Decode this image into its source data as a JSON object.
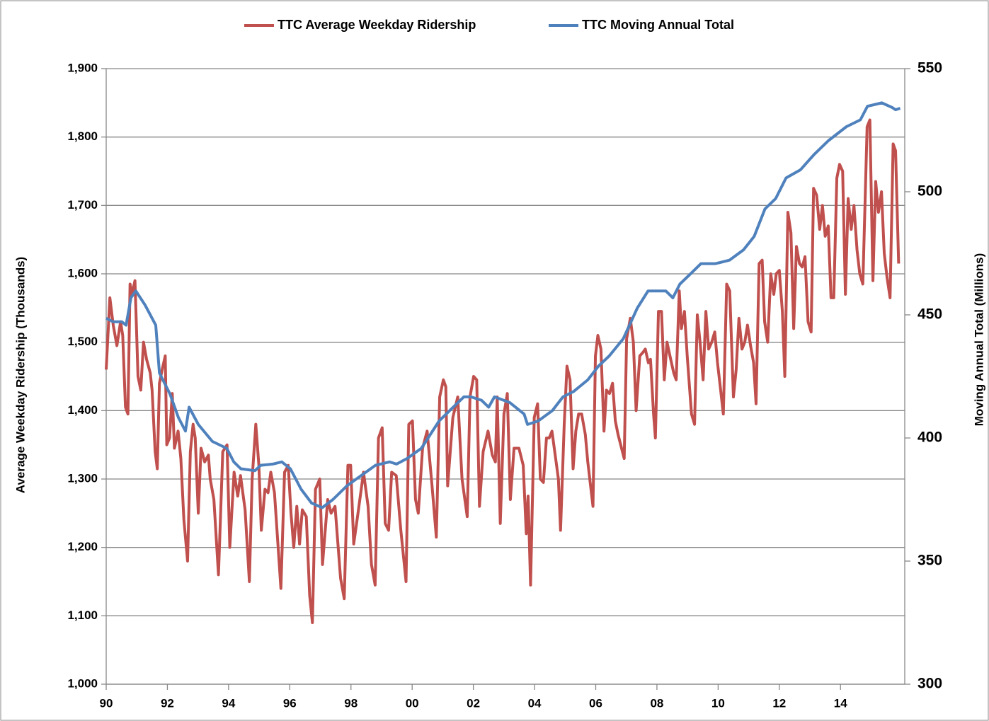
{
  "chart_data": {
    "type": "line",
    "y_label": "Average Weekday Ridership (Thousands)",
    "y2_label": "Moving Annual Total (Millions)",
    "xlim": [
      1990,
      2016.1
    ],
    "xticks": [
      {
        "value": 1990,
        "label": "90"
      },
      {
        "value": 1992,
        "label": "92"
      },
      {
        "value": 1994,
        "label": "94"
      },
      {
        "value": 1996,
        "label": "96"
      },
      {
        "value": 1998,
        "label": "98"
      },
      {
        "value": 2000,
        "label": "00"
      },
      {
        "value": 2002,
        "label": "02"
      },
      {
        "value": 2004,
        "label": "04"
      },
      {
        "value": 2006,
        "label": "06"
      },
      {
        "value": 2008,
        "label": "08"
      },
      {
        "value": 2010,
        "label": "10"
      },
      {
        "value": 2012,
        "label": "12"
      },
      {
        "value": 2014,
        "label": "14"
      }
    ],
    "ylim": [
      1000,
      1900
    ],
    "yticks": [
      {
        "value": 1000,
        "label": "1,000"
      },
      {
        "value": 1100,
        "label": "1,100"
      },
      {
        "value": 1200,
        "label": "1,200"
      },
      {
        "value": 1300,
        "label": "1,300"
      },
      {
        "value": 1400,
        "label": "1,400"
      },
      {
        "value": 1500,
        "label": "1,500"
      },
      {
        "value": 1600,
        "label": "1,600"
      },
      {
        "value": 1700,
        "label": "1,700"
      },
      {
        "value": 1800,
        "label": "1,800"
      },
      {
        "value": 1900,
        "label": "1,900"
      }
    ],
    "y2lim": [
      300,
      550
    ],
    "y2ticks": [
      300,
      350,
      400,
      450,
      500,
      550
    ],
    "grid": true,
    "legend": "top",
    "series": [
      {
        "name": "TTC Average Weekday Ridership",
        "color": "#c0504d",
        "axis": "y",
        "x": [
          1990,
          1990.12,
          1990.23,
          1990.35,
          1990.47,
          1990.54,
          1990.63,
          1990.71,
          1990.78,
          1990.84,
          1990.94,
          1991.04,
          1991.13,
          1991.22,
          1991.32,
          1991.44,
          1991.5,
          1991.6,
          1991.67,
          1991.74,
          1991.83,
          1991.93,
          1991.98,
          1992.07,
          1992.16,
          1992.23,
          1992.35,
          1992.44,
          1992.54,
          1992.66,
          1992.75,
          1992.84,
          1992.91,
          1993.01,
          1993.1,
          1993.22,
          1993.34,
          1993.4,
          1993.52,
          1993.67,
          1993.81,
          1993.95,
          1994.04,
          1994.18,
          1994.3,
          1994.39,
          1994.54,
          1994.68,
          1994.77,
          1994.89,
          1994.99,
          1995.07,
          1995.19,
          1995.29,
          1995.38,
          1995.5,
          1995.71,
          1995.83,
          1995.95,
          1996.04,
          1996.13,
          1996.23,
          1996.32,
          1996.41,
          1996.54,
          1996.65,
          1996.74,
          1996.84,
          1996.98,
          1997.07,
          1997.24,
          1997.35,
          1997.48,
          1997.66,
          1997.78,
          1997.9,
          1997.99,
          1998.09,
          1998.23,
          1998.41,
          1998.56,
          1998.67,
          1998.79,
          1998.9,
          1999.02,
          1999.12,
          1999.23,
          1999.33,
          1999.48,
          1999.63,
          1999.8,
          1999.89,
          2000.01,
          2000.11,
          2000.2,
          2000.34,
          2000.49,
          2000.65,
          2000.79,
          2000.9,
          2001.02,
          2001.1,
          2001.16,
          2001.33,
          2001.49,
          2001.63,
          2001.8,
          2001.89,
          2002.01,
          2002.11,
          2002.2,
          2002.32,
          2002.48,
          2002.62,
          2002.72,
          2002.78,
          2002.88,
          2003,
          2003.11,
          2003.21,
          2003.33,
          2003.49,
          2003.63,
          2003.73,
          2003.79,
          2003.87,
          2003.99,
          2004.1,
          2004.19,
          2004.29,
          2004.39,
          2004.48,
          2004.57,
          2004.69,
          2004.78,
          2004.85,
          2004.97,
          2005.06,
          2005.16,
          2005.26,
          2005.35,
          2005.44,
          2005.54,
          2005.66,
          2005.74,
          2005.91,
          2005.99,
          2006.07,
          2006.17,
          2006.27,
          2006.35,
          2006.45,
          2006.55,
          2006.64,
          2006.73,
          2006.93,
          2007.01,
          2007.13,
          2007.23,
          2007.32,
          2007.44,
          2007.54,
          2007.62,
          2007.72,
          2007.79,
          2007.89,
          2007.95,
          2008.05,
          2008.15,
          2008.24,
          2008.33,
          2008.45,
          2008.55,
          2008.63,
          2008.73,
          2008.8,
          2008.9,
          2008.99,
          2009.13,
          2009.23,
          2009.32,
          2009.41,
          2009.51,
          2009.6,
          2009.69,
          2009.79,
          2009.89,
          2009.98,
          2010.07,
          2010.17,
          2010.28,
          2010.38,
          2010.5,
          2010.59,
          2010.68,
          2010.78,
          2010.87,
          2010.96,
          2011.06,
          2011.16,
          2011.24,
          2011.34,
          2011.44,
          2011.52,
          2011.62,
          2011.72,
          2011.82,
          2011.9,
          2012,
          2012.1,
          2012.18,
          2012.28,
          2012.38,
          2012.47,
          2012.56,
          2012.66,
          2012.75,
          2012.84,
          2012.94,
          2013.04,
          2013.12,
          2013.22,
          2013.32,
          2013.41,
          2013.5,
          2013.6,
          2013.69,
          2013.78,
          2013.88,
          2013.97,
          2014.07,
          2014.16,
          2014.25,
          2014.35,
          2014.44,
          2014.54,
          2014.63,
          2014.73,
          2014.87,
          2014.96,
          2015.06,
          2015.15,
          2015.24,
          2015.34,
          2015.43,
          2015.52,
          2015.62,
          2015.72,
          2015.8,
          2015.9
        ],
        "values": [
          1460,
          1565,
          1525,
          1495,
          1530,
          1510,
          1405,
          1395,
          1585,
          1570,
          1590,
          1450,
          1430,
          1500,
          1475,
          1455,
          1430,
          1340,
          1315,
          1440,
          1460,
          1480,
          1350,
          1360,
          1425,
          1345,
          1370,
          1330,
          1240,
          1180,
          1340,
          1380,
          1360,
          1250,
          1345,
          1325,
          1335,
          1300,
          1270,
          1160,
          1340,
          1350,
          1200,
          1310,
          1275,
          1305,
          1255,
          1150,
          1300,
          1380,
          1320,
          1225,
          1285,
          1280,
          1310,
          1280,
          1140,
          1310,
          1320,
          1250,
          1200,
          1260,
          1205,
          1255,
          1245,
          1130,
          1090,
          1285,
          1300,
          1175,
          1270,
          1250,
          1260,
          1155,
          1125,
          1320,
          1320,
          1205,
          1250,
          1310,
          1260,
          1175,
          1145,
          1360,
          1375,
          1235,
          1225,
          1310,
          1305,
          1225,
          1150,
          1380,
          1385,
          1270,
          1250,
          1345,
          1370,
          1290,
          1215,
          1420,
          1445,
          1435,
          1290,
          1390,
          1420,
          1300,
          1245,
          1420,
          1450,
          1445,
          1260,
          1340,
          1370,
          1335,
          1325,
          1420,
          1235,
          1395,
          1425,
          1270,
          1345,
          1345,
          1320,
          1220,
          1275,
          1145,
          1390,
          1410,
          1300,
          1295,
          1360,
          1360,
          1370,
          1330,
          1300,
          1225,
          1380,
          1465,
          1445,
          1315,
          1370,
          1395,
          1395,
          1365,
          1325,
          1260,
          1480,
          1510,
          1490,
          1370,
          1430,
          1425,
          1440,
          1385,
          1365,
          1330,
          1505,
          1535,
          1500,
          1400,
          1480,
          1485,
          1490,
          1470,
          1475,
          1395,
          1360,
          1545,
          1545,
          1445,
          1500,
          1475,
          1455,
          1445,
          1575,
          1520,
          1545,
          1480,
          1395,
          1380,
          1540,
          1500,
          1445,
          1545,
          1490,
          1500,
          1515,
          1470,
          1435,
          1395,
          1585,
          1575,
          1420,
          1460,
          1535,
          1490,
          1500,
          1525,
          1495,
          1470,
          1410,
          1615,
          1620,
          1530,
          1500,
          1600,
          1570,
          1600,
          1605,
          1545,
          1450,
          1690,
          1660,
          1520,
          1640,
          1615,
          1610,
          1625,
          1530,
          1515,
          1725,
          1715,
          1665,
          1700,
          1655,
          1670,
          1565,
          1565,
          1740,
          1760,
          1750,
          1570,
          1710,
          1665,
          1700,
          1635,
          1600,
          1585,
          1815,
          1825,
          1590,
          1735,
          1690,
          1720,
          1630,
          1595,
          1565,
          1790,
          1780,
          1615
        ]
      },
      {
        "name": "TTC Moving Annual Total",
        "color": "#4f81bd",
        "axis": "y2",
        "x": [
          1990,
          1990.23,
          1990.51,
          1990.65,
          1990.81,
          1990.97,
          1991.27,
          1991.62,
          1991.74,
          1992.08,
          1992.36,
          1992.59,
          1992.71,
          1993.01,
          1993.47,
          1993.94,
          1994.17,
          1994.4,
          1994.86,
          1995.05,
          1995.44,
          1995.74,
          1996.02,
          1996.37,
          1996.71,
          1997.06,
          1997.41,
          1997.87,
          1998.33,
          1998.8,
          1999.26,
          1999.49,
          1999.84,
          2000.3,
          2000.88,
          2001.34,
          2001.69,
          2001.92,
          2002.27,
          2002.5,
          2002.69,
          2003.19,
          2003.66,
          2003.77,
          2004.12,
          2004.58,
          2004.93,
          2005.28,
          2005.74,
          2006.09,
          2006.44,
          2006.9,
          2007.36,
          2007.71,
          2008.29,
          2008.52,
          2008.75,
          2009.1,
          2009.44,
          2009.91,
          2010.37,
          2010.83,
          2011.18,
          2011.53,
          2011.88,
          2012.22,
          2012.69,
          2013.15,
          2013.61,
          2014.19,
          2014.65,
          2014.88,
          2015.35,
          2015.69,
          2015.8,
          2015.95
        ],
        "values": [
          448.6,
          447.2,
          447.2,
          445.8,
          457,
          459.7,
          454,
          445.8,
          426.4,
          418,
          408.3,
          402.8,
          412.5,
          405.5,
          398.6,
          395.8,
          390.3,
          387.5,
          386.7,
          388.9,
          389.4,
          390.3,
          387.5,
          379.2,
          373.6,
          371.7,
          375,
          380.6,
          384.7,
          388.9,
          390.3,
          389.4,
          391.7,
          395.8,
          406.9,
          412.5,
          416.7,
          416.7,
          415.3,
          412.5,
          416.7,
          414.4,
          409.7,
          405.5,
          406.9,
          411.1,
          416.7,
          418.9,
          423.6,
          429.2,
          433.3,
          440.3,
          452.8,
          459.7,
          459.7,
          456.9,
          462.5,
          466.7,
          470.8,
          470.8,
          472.2,
          476.4,
          481.9,
          493,
          497.2,
          505.6,
          508.9,
          515.3,
          520.8,
          526.4,
          529.2,
          534.7,
          536.1,
          534.2,
          533.3,
          533.9
        ]
      }
    ]
  }
}
